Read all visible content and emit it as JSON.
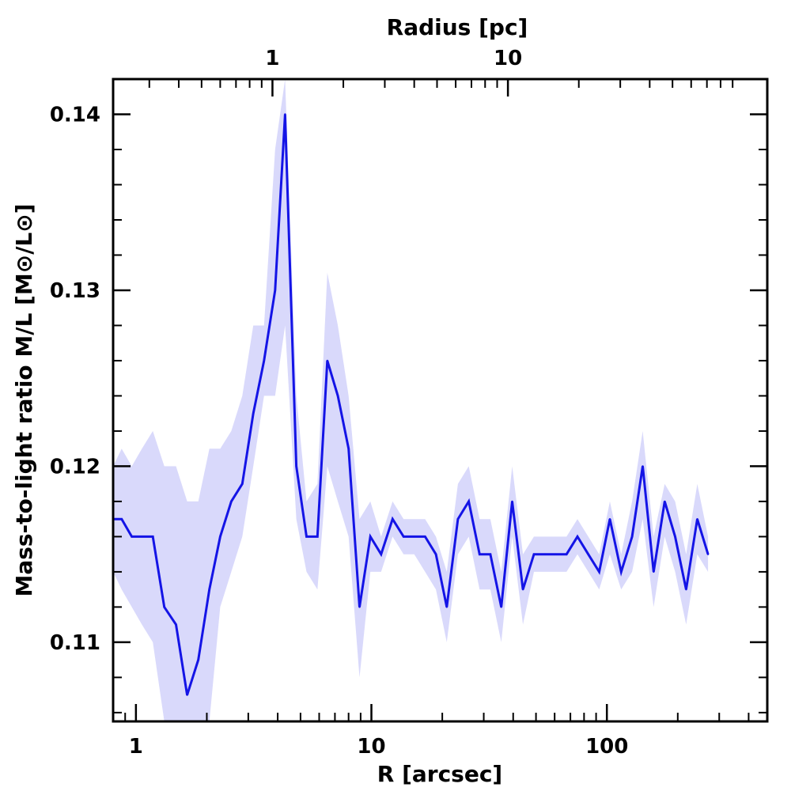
{
  "chart_data": {
    "type": "line",
    "title": "",
    "xlabel": "R [arcsec]",
    "x2label": "Radius [pc]",
    "ylabel": "Mass-to-light ratio M/L [M⊙/L⊙]",
    "xscale": "log",
    "xlim": [
      0.8,
      480
    ],
    "ylim": [
      0.1055,
      0.142
    ],
    "x_ticklabels": [
      "1",
      "10",
      "100"
    ],
    "x_ticks": [
      1,
      10,
      100
    ],
    "x2_ticklabels": [
      "1",
      "10"
    ],
    "x2_ticks_in_arcsec": [
      3.8,
      38
    ],
    "y_ticklabels": [
      "0.11",
      "0.12",
      "0.13",
      "0.14"
    ],
    "y_ticks": [
      0.11,
      0.12,
      0.13,
      0.14
    ],
    "grid": false,
    "colors": {
      "line": "#1414e6",
      "band": "#d9d9fb",
      "axes": "#000000"
    },
    "series": [
      {
        "x": [
          0.8,
          0.87,
          0.96,
          1.06,
          1.18,
          1.32,
          1.48,
          1.65,
          1.84,
          2.05,
          2.28,
          2.54,
          2.83,
          3.15,
          3.5,
          3.9,
          4.3,
          4.8,
          5.3,
          5.9,
          6.5,
          7.2,
          8.0,
          8.9,
          9.9,
          11.0,
          12.3,
          13.7,
          15.2,
          16.9,
          18.8,
          20.9,
          23.3,
          25.9,
          28.8,
          32.0,
          35.6,
          39.6,
          44.0,
          49.0,
          54.5,
          60.6,
          67.4,
          75.0,
          83.4,
          92.8,
          103.0,
          115.0,
          128.0,
          142.0,
          158.0,
          176.0,
          195.0,
          217.0,
          242.0,
          269.0
        ],
        "y": [
          0.117,
          0.117,
          0.116,
          0.116,
          0.116,
          0.112,
          0.111,
          0.107,
          0.109,
          0.113,
          0.116,
          0.118,
          0.119,
          0.123,
          0.126,
          0.13,
          0.14,
          0.12,
          0.116,
          0.116,
          0.126,
          0.124,
          0.121,
          0.112,
          0.116,
          0.115,
          0.117,
          0.116,
          0.116,
          0.116,
          0.115,
          0.112,
          0.117,
          0.118,
          0.115,
          0.115,
          0.112,
          0.118,
          0.113,
          0.115,
          0.115,
          0.115,
          0.115,
          0.116,
          0.115,
          0.114,
          0.117,
          0.114,
          0.116,
          0.12,
          0.114,
          0.118,
          0.116,
          0.113,
          0.117,
          0.115
        ],
        "y_lower": [
          0.114,
          0.113,
          0.112,
          0.111,
          0.11,
          0.1055,
          0.1055,
          0.1055,
          0.1055,
          0.1055,
          0.112,
          0.114,
          0.116,
          0.12,
          0.124,
          0.124,
          0.128,
          0.117,
          0.114,
          0.113,
          0.12,
          0.118,
          0.116,
          0.108,
          0.114,
          0.114,
          0.116,
          0.115,
          0.115,
          0.114,
          0.113,
          0.11,
          0.115,
          0.116,
          0.113,
          0.113,
          0.11,
          0.116,
          0.111,
          0.114,
          0.114,
          0.114,
          0.114,
          0.115,
          0.114,
          0.113,
          0.115,
          0.113,
          0.114,
          0.117,
          0.112,
          0.116,
          0.114,
          0.111,
          0.115,
          0.114
        ],
        "y_upper": [
          0.12,
          0.121,
          0.12,
          0.121,
          0.122,
          0.12,
          0.12,
          0.118,
          0.118,
          0.121,
          0.121,
          0.122,
          0.124,
          0.128,
          0.128,
          0.138,
          0.142,
          0.124,
          0.118,
          0.119,
          0.131,
          0.128,
          0.124,
          0.117,
          0.118,
          0.116,
          0.118,
          0.117,
          0.117,
          0.117,
          0.116,
          0.114,
          0.119,
          0.12,
          0.117,
          0.117,
          0.114,
          0.12,
          0.115,
          0.116,
          0.116,
          0.116,
          0.116,
          0.117,
          0.116,
          0.115,
          0.118,
          0.115,
          0.118,
          0.122,
          0.116,
          0.119,
          0.118,
          0.115,
          0.119,
          0.116
        ]
      }
    ]
  }
}
